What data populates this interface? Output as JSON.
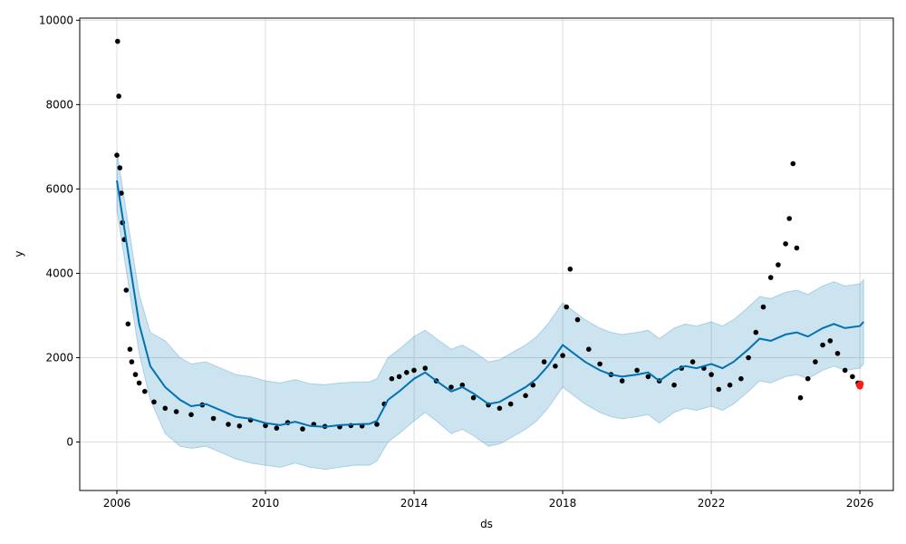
{
  "chart_data": {
    "type": "scatter",
    "title": "",
    "xlabel": "ds",
    "ylabel": "y",
    "xlim": [
      2005.0,
      2026.9
    ],
    "ylim": [
      -1150,
      10050
    ],
    "grid": true,
    "x_ticks": [
      2006,
      2010,
      2014,
      2018,
      2022,
      2026
    ],
    "x_tick_labels": [
      "2006",
      "2010",
      "2014",
      "2018",
      "2022",
      "2026"
    ],
    "y_ticks": [
      0,
      2000,
      4000,
      6000,
      8000,
      10000
    ],
    "y_tick_labels": [
      "0",
      "2000",
      "4000",
      "6000",
      "8000",
      "10000"
    ],
    "colors": {
      "observed": "#000000",
      "forecast": "#0072B2",
      "band": "#0072B2",
      "recent": "#ff1a1a",
      "grid": "#dddddd"
    },
    "series": [
      {
        "name": "observed",
        "kind": "scatter",
        "x": [
          2006.0,
          2006.02,
          2006.05,
          2006.08,
          2006.12,
          2006.15,
          2006.2,
          2006.25,
          2006.3,
          2006.35,
          2006.4,
          2006.5,
          2006.6,
          2006.75,
          2007.0,
          2007.3,
          2007.6,
          2008.0,
          2008.3,
          2008.6,
          2009.0,
          2009.3,
          2009.6,
          2010.0,
          2010.3,
          2010.6,
          2011.0,
          2011.3,
          2011.6,
          2012.0,
          2012.3,
          2012.6,
          2013.0,
          2013.2,
          2013.4,
          2013.6,
          2013.8,
          2014.0,
          2014.3,
          2014.6,
          2015.0,
          2015.3,
          2015.6,
          2016.0,
          2016.3,
          2016.6,
          2017.0,
          2017.2,
          2017.5,
          2017.8,
          2018.0,
          2018.1,
          2018.2,
          2018.4,
          2018.7,
          2019.0,
          2019.3,
          2019.6,
          2020.0,
          2020.3,
          2020.6,
          2021.0,
          2021.2,
          2021.5,
          2021.8,
          2022.0,
          2022.2,
          2022.5,
          2022.8,
          2023.0,
          2023.2,
          2023.4,
          2023.6,
          2023.8,
          2024.0,
          2024.1,
          2024.2,
          2024.3,
          2024.4,
          2024.6,
          2024.8,
          2025.0,
          2025.2,
          2025.4,
          2025.6,
          2025.8,
          2025.95
        ],
        "y": [
          6800,
          9500,
          8200,
          6500,
          5900,
          5200,
          4800,
          3600,
          2800,
          2200,
          1900,
          1600,
          1400,
          1200,
          950,
          800,
          720,
          650,
          880,
          560,
          420,
          380,
          520,
          390,
          330,
          460,
          310,
          420,
          370,
          360,
          390,
          380,
          420,
          900,
          1500,
          1550,
          1650,
          1700,
          1750,
          1450,
          1300,
          1350,
          1050,
          880,
          800,
          900,
          1100,
          1350,
          1900,
          1800,
          2050,
          3200,
          4100,
          2900,
          2200,
          1850,
          1600,
          1450,
          1700,
          1550,
          1450,
          1350,
          1750,
          1900,
          1750,
          1600,
          1250,
          1350,
          1500,
          2000,
          2600,
          3200,
          3900,
          4200,
          4700,
          5300,
          6600,
          4600,
          1050,
          1500,
          1900,
          2300,
          2400,
          2100,
          1700,
          1550,
          1400
        ]
      },
      {
        "name": "forecast",
        "kind": "line",
        "x": [
          2006.0,
          2006.3,
          2006.6,
          2006.9,
          2007.3,
          2007.7,
          2008.0,
          2008.4,
          2008.8,
          2009.2,
          2009.6,
          2010.0,
          2010.4,
          2010.8,
          2011.2,
          2011.6,
          2012.0,
          2012.4,
          2012.8,
          2013.0,
          2013.3,
          2013.6,
          2014.0,
          2014.3,
          2014.6,
          2015.0,
          2015.3,
          2015.6,
          2016.0,
          2016.3,
          2016.6,
          2017.0,
          2017.3,
          2017.6,
          2018.0,
          2018.3,
          2018.6,
          2019.0,
          2019.3,
          2019.6,
          2020.0,
          2020.3,
          2020.6,
          2021.0,
          2021.3,
          2021.6,
          2022.0,
          2022.3,
          2022.6,
          2023.0,
          2023.3,
          2023.6,
          2024.0,
          2024.3,
          2024.6,
          2025.0,
          2025.3,
          2025.6,
          2026.0,
          2026.1
        ],
        "y": [
          6200,
          4500,
          2800,
          1800,
          1300,
          1000,
          850,
          900,
          750,
          600,
          550,
          450,
          400,
          480,
          380,
          360,
          400,
          420,
          430,
          500,
          1000,
          1200,
          1500,
          1650,
          1450,
          1200,
          1300,
          1150,
          900,
          950,
          1100,
          1300,
          1500,
          1800,
          2300,
          2100,
          1900,
          1700,
          1600,
          1550,
          1600,
          1650,
          1450,
          1700,
          1800,
          1750,
          1850,
          1750,
          1900,
          2200,
          2450,
          2400,
          2550,
          2600,
          2500,
          2700,
          2800,
          2700,
          2750,
          2850
        ]
      },
      {
        "name": "uncertainty-band",
        "kind": "band",
        "x": [
          2006.0,
          2006.3,
          2006.6,
          2006.9,
          2007.3,
          2007.7,
          2008.0,
          2008.4,
          2008.8,
          2009.2,
          2009.6,
          2010.0,
          2010.4,
          2010.8,
          2011.2,
          2011.6,
          2012.0,
          2012.4,
          2012.8,
          2013.0,
          2013.3,
          2013.6,
          2014.0,
          2014.3,
          2014.6,
          2015.0,
          2015.3,
          2015.6,
          2016.0,
          2016.3,
          2016.6,
          2017.0,
          2017.3,
          2017.6,
          2018.0,
          2018.3,
          2018.6,
          2019.0,
          2019.3,
          2019.6,
          2020.0,
          2020.3,
          2020.6,
          2021.0,
          2021.3,
          2021.6,
          2022.0,
          2022.3,
          2022.6,
          2023.0,
          2023.3,
          2023.6,
          2024.0,
          2024.3,
          2024.6,
          2025.0,
          2025.3,
          2025.6,
          2026.0,
          2026.1
        ],
        "lower": [
          5500,
          3800,
          2100,
          1000,
          200,
          -100,
          -150,
          -100,
          -250,
          -400,
          -500,
          -550,
          -600,
          -500,
          -600,
          -650,
          -600,
          -550,
          -550,
          -450,
          0,
          200,
          500,
          700,
          500,
          200,
          300,
          150,
          -100,
          -50,
          100,
          300,
          500,
          800,
          1300,
          1100,
          900,
          700,
          600,
          550,
          600,
          650,
          450,
          700,
          800,
          750,
          850,
          750,
          900,
          1200,
          1450,
          1400,
          1550,
          1600,
          1500,
          1700,
          1800,
          1700,
          1750,
          1850
        ],
        "upper": [
          6900,
          5200,
          3500,
          2600,
          2400,
          2000,
          1850,
          1900,
          1750,
          1600,
          1550,
          1450,
          1400,
          1480,
          1380,
          1360,
          1400,
          1420,
          1430,
          1500,
          2000,
          2200,
          2500,
          2650,
          2450,
          2200,
          2300,
          2150,
          1900,
          1950,
          2100,
          2300,
          2500,
          2800,
          3300,
          3100,
          2900,
          2700,
          2600,
          2550,
          2600,
          2650,
          2450,
          2700,
          2800,
          2750,
          2850,
          2750,
          2900,
          3200,
          3450,
          3400,
          3550,
          3600,
          3500,
          3700,
          3800,
          3700,
          3750,
          3850
        ]
      },
      {
        "name": "recent-actuals",
        "kind": "scatter",
        "x": [
          2025.98,
          2026.0,
          2026.02
        ],
        "y": [
          1350,
          1320,
          1380
        ]
      }
    ]
  }
}
